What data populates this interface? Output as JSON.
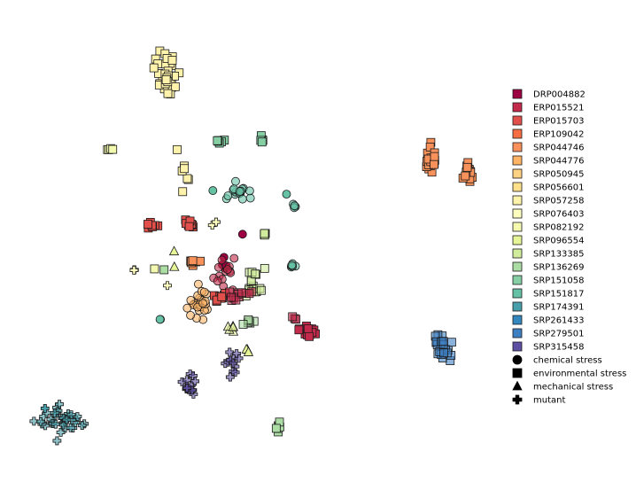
{
  "chart_data": {
    "type": "scatter",
    "title": "",
    "xlabel": "",
    "ylabel": "",
    "axes_visible": false,
    "grid": false,
    "legend_position": "right",
    "xlim": [
      0,
      100
    ],
    "ylim": [
      0,
      100
    ],
    "series": [
      {
        "name": "DRP004882",
        "color": "#9e0142"
      },
      {
        "name": "ERP015521",
        "color": "#c2294a"
      },
      {
        "name": "ERP015703",
        "color": "#e1504a"
      },
      {
        "name": "ERP109042",
        "color": "#f46d43"
      },
      {
        "name": "SRP044746",
        "color": "#f8915a"
      },
      {
        "name": "SRP044776",
        "color": "#fdb465"
      },
      {
        "name": "SRP050945",
        "color": "#fdd282"
      },
      {
        "name": "SRP056601",
        "color": "#fee08b"
      },
      {
        "name": "SRP057258",
        "color": "#fff3ac"
      },
      {
        "name": "SRP076403",
        "color": "#ffffbf"
      },
      {
        "name": "SRP082192",
        "color": "#f3fab0"
      },
      {
        "name": "SRP096554",
        "color": "#e6f598"
      },
      {
        "name": "SRP133385",
        "color": "#d0ec9c"
      },
      {
        "name": "SRP136269",
        "color": "#abdda4"
      },
      {
        "name": "SRP151058",
        "color": "#86cfa5"
      },
      {
        "name": "SRP151817",
        "color": "#66c2a5"
      },
      {
        "name": "SRP174391",
        "color": "#479faa"
      },
      {
        "name": "SRP261433",
        "color": "#3288bd"
      },
      {
        "name": "SRP279501",
        "color": "#3e7fc1"
      },
      {
        "name": "SRP315458",
        "color": "#5e4fa2"
      }
    ],
    "marker_legend": [
      {
        "label": "chemical stress",
        "marker": "circle"
      },
      {
        "label": "environmental stress",
        "marker": "square"
      },
      {
        "label": "mechanical stress",
        "marker": "triangle"
      },
      {
        "label": "mutant",
        "marker": "plus"
      }
    ],
    "clusters": [
      {
        "series": "SRP057258",
        "marker": "square",
        "x": 30.9,
        "y": 88.4,
        "sx": 2.4,
        "sy": 4.4,
        "n": 32,
        "alpha": 1
      },
      {
        "series": "SRP082192",
        "marker": "square",
        "x": 19.1,
        "y": 71.3,
        "sx": 0.8,
        "sy": 0.5,
        "n": 4,
        "alpha": 1
      },
      {
        "series": "SRP057258",
        "marker": "square",
        "x": 35.2,
        "y": 65.8,
        "sx": 1.8,
        "sy": 4.5,
        "n": 7,
        "alpha": 1
      },
      {
        "series": "SRP151058",
        "marker": "square",
        "x": 42.3,
        "y": 73.0,
        "sx": 1.2,
        "sy": 0.4,
        "n": 6,
        "alpha": 1
      },
      {
        "series": "SRP151058",
        "marker": "square",
        "x": 51.0,
        "y": 73.4,
        "sx": 0.4,
        "sy": 0.8,
        "n": 6,
        "alpha": 1
      },
      {
        "series": "SRP151817",
        "marker": "circle",
        "x": 45.6,
        "y": 61.8,
        "sx": 2.5,
        "sy": 2.0,
        "n": 16,
        "alpha": 0.6
      },
      {
        "series": "SRP151817",
        "marker": "circle",
        "x": 40.8,
        "y": 62.0,
        "sx": 0.3,
        "sy": 0.3,
        "n": 1,
        "alpha": 1
      },
      {
        "series": "SRP151817",
        "marker": "circle",
        "x": 56.2,
        "y": 61.2,
        "sx": 0.3,
        "sy": 0.3,
        "n": 1,
        "alpha": 1
      },
      {
        "series": "SRP151817",
        "marker": "circle",
        "x": 57.7,
        "y": 59.0,
        "sx": 0.8,
        "sy": 0.7,
        "n": 5,
        "alpha": 0.6
      },
      {
        "series": "ERP015703",
        "marker": "square",
        "x": 27.7,
        "y": 54.2,
        "sx": 1.2,
        "sy": 0.9,
        "n": 8,
        "alpha": 1
      },
      {
        "series": "ERP015703",
        "marker": "square",
        "x": 36.1,
        "y": 54.6,
        "sx": 1.2,
        "sy": 0.9,
        "n": 8,
        "alpha": 1
      },
      {
        "series": "SRP133385",
        "marker": "square",
        "x": 51.6,
        "y": 52.5,
        "sx": 0.5,
        "sy": 0.6,
        "n": 5,
        "alpha": 1
      },
      {
        "series": "SRP044746",
        "marker": "square",
        "x": 36.5,
        "y": 45.9,
        "sx": 1.0,
        "sy": 0.6,
        "n": 8,
        "alpha": 1
      },
      {
        "series": "DRP004882",
        "marker": "circle",
        "x": 43.0,
        "y": 45.3,
        "sx": 1.0,
        "sy": 2.0,
        "n": 4,
        "alpha": 1
      },
      {
        "series": "ERP015521",
        "marker": "circle",
        "x": 43.2,
        "y": 43.5,
        "sx": 2.0,
        "sy": 2.5,
        "n": 14,
        "alpha": 0.6
      },
      {
        "series": "SRP133385",
        "marker": "square",
        "x": 49.6,
        "y": 41.8,
        "sx": 1.7,
        "sy": 3.6,
        "n": 16,
        "alpha": 0.6
      },
      {
        "series": "SRP151817",
        "marker": "circle",
        "x": 57.5,
        "y": 45.2,
        "sx": 0.6,
        "sy": 0.7,
        "n": 6,
        "alpha": 0.6
      },
      {
        "series": "SRP044776",
        "marker": "circle",
        "x": 38.3,
        "y": 36.9,
        "sx": 2.4,
        "sy": 3.1,
        "n": 24,
        "alpha": 0.6
      },
      {
        "series": "ERP015703",
        "marker": "square",
        "x": 42.3,
        "y": 38.2,
        "sx": 1.1,
        "sy": 1.2,
        "n": 10,
        "alpha": 1
      },
      {
        "series": "ERP015521",
        "marker": "square",
        "x": 46.2,
        "y": 38.6,
        "sx": 2.3,
        "sy": 1.4,
        "n": 12,
        "alpha": 0.6
      },
      {
        "series": "SRP136269",
        "marker": "square",
        "x": 48.9,
        "y": 32.9,
        "sx": 2.0,
        "sy": 0.6,
        "n": 6,
        "alpha": 0.6
      },
      {
        "series": "SRP096554",
        "marker": "triangle",
        "x": 44.7,
        "y": 31.1,
        "sx": 1.3,
        "sy": 0.9,
        "n": 5,
        "alpha": 0.6
      },
      {
        "series": "SRP096554",
        "marker": "triangle",
        "x": 48.2,
        "y": 26.3,
        "sx": 0.7,
        "sy": 1.3,
        "n": 3,
        "alpha": 1
      },
      {
        "series": "SRP096554",
        "marker": "triangle",
        "x": 32.9,
        "y": 49.7,
        "sx": 0.3,
        "sy": 3.3,
        "n": 2,
        "alpha": 1
      },
      {
        "series": "SRP082192",
        "marker": "square",
        "x": 28.6,
        "y": 44.6,
        "sx": 0.3,
        "sy": 0.3,
        "n": 1,
        "alpha": 1
      },
      {
        "series": "SRP136269",
        "marker": "square",
        "x": 30.6,
        "y": 44.4,
        "sx": 0.3,
        "sy": 0.3,
        "n": 1,
        "alpha": 1
      },
      {
        "series": "SRP076403",
        "marker": "plus",
        "x": 24.5,
        "y": 44.4,
        "sx": 0.5,
        "sy": 0.3,
        "n": 3,
        "alpha": 1
      },
      {
        "series": "SRP076403",
        "marker": "plus",
        "x": 31.3,
        "y": 40.9,
        "sx": 0.3,
        "sy": 0.3,
        "n": 1,
        "alpha": 1
      },
      {
        "series": "SRP076403",
        "marker": "plus",
        "x": 41.8,
        "y": 54.7,
        "sx": 1.4,
        "sy": 0.4,
        "n": 2,
        "alpha": 1
      },
      {
        "series": "DRP004882",
        "marker": "circle",
        "x": 47.0,
        "y": 52.3,
        "sx": 0.3,
        "sy": 0.3,
        "n": 1,
        "alpha": 1
      },
      {
        "series": "SRP151817",
        "marker": "circle",
        "x": 29.9,
        "y": 33.4,
        "sx": 0.3,
        "sy": 0.3,
        "n": 2,
        "alpha": 1
      },
      {
        "series": "ERP015521",
        "marker": "square",
        "x": 60.3,
        "y": 30.7,
        "sx": 1.6,
        "sy": 2.2,
        "n": 12,
        "alpha": 1
      },
      {
        "series": "ERP015521",
        "marker": "square",
        "x": 57.8,
        "y": 33.6,
        "sx": 0.4,
        "sy": 0.4,
        "n": 3,
        "alpha": 0.6
      },
      {
        "series": "SRP044746",
        "marker": "square",
        "x": 86.5,
        "y": 69.4,
        "sx": 1.0,
        "sy": 2.6,
        "n": 24,
        "alpha": 1
      },
      {
        "series": "SRP044746",
        "marker": "square",
        "x": 94.3,
        "y": 66.4,
        "sx": 0.7,
        "sy": 2.3,
        "n": 20,
        "alpha": 1
      },
      {
        "series": "SRP279501",
        "marker": "square",
        "x": 88.6,
        "y": 27.5,
        "sx": 1.5,
        "sy": 2.4,
        "n": 22,
        "alpha": 0.6
      },
      {
        "series": "SRP315458",
        "marker": "plus",
        "x": 44.8,
        "y": 23.1,
        "sx": 1.1,
        "sy": 2.8,
        "n": 12,
        "alpha": 0.6
      },
      {
        "series": "SRP315458",
        "marker": "plus",
        "x": 36.0,
        "y": 18.4,
        "sx": 1.3,
        "sy": 1.9,
        "n": 14,
        "alpha": 0.6
      },
      {
        "series": "SRP174391",
        "marker": "plus",
        "x": 9.5,
        "y": 11.0,
        "sx": 3.8,
        "sy": 2.7,
        "n": 38,
        "alpha": 0.6
      },
      {
        "series": "SRP174391",
        "marker": "plus",
        "x": 5.7,
        "y": 13.6,
        "sx": 0.3,
        "sy": 0.3,
        "n": 1,
        "alpha": 1
      },
      {
        "series": "SRP136269",
        "marker": "square",
        "x": 54.7,
        "y": 9.8,
        "sx": 0.6,
        "sy": 2.3,
        "n": 7,
        "alpha": 1
      }
    ]
  }
}
